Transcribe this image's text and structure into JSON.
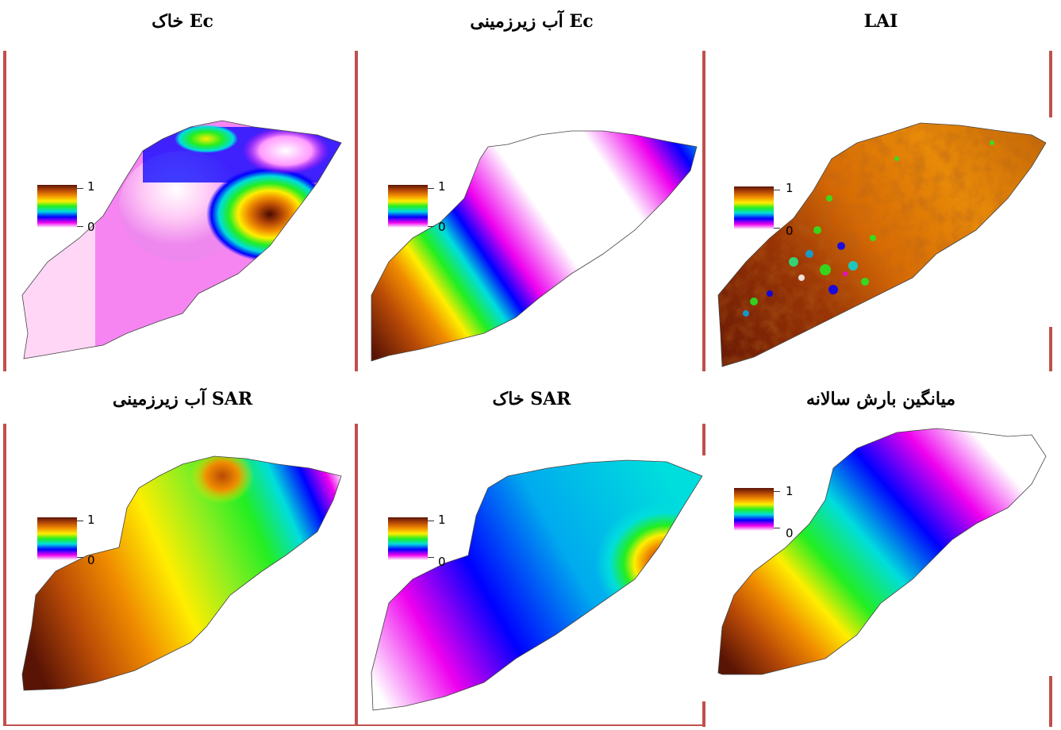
{
  "panels": [
    {
      "title": "Ec خاک",
      "legend_max": "1",
      "legend_min": "0"
    },
    {
      "title": "Ec آب زیرزمینی",
      "legend_max": "1",
      "legend_min": "0"
    },
    {
      "title": "LAI",
      "legend_max": "1",
      "legend_min": "0"
    },
    {
      "title": "SAR آب زیرزمینی",
      "legend_max": "1",
      "legend_min": "0"
    },
    {
      "title": "SAR خاک",
      "legend_max": "1",
      "legend_min": "0"
    },
    {
      "title": "میانگین بارش سالانه",
      "legend_max": "1",
      "legend_min": "0"
    }
  ],
  "colors": {
    "border": "#c0504d",
    "ramp": [
      "#5a1405",
      "#b84a06",
      "#f08c00",
      "#ffee00",
      "#22ee22",
      "#00dddd",
      "#0000ff",
      "#ee00ee",
      "#ffffff"
    ]
  }
}
